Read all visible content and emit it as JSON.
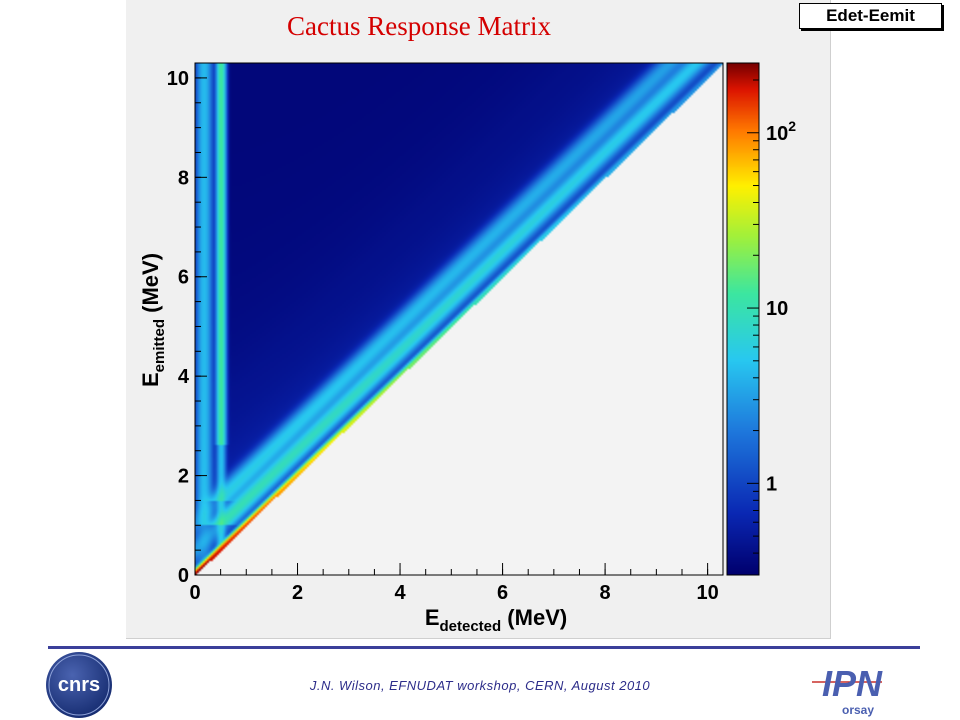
{
  "chart_data": {
    "type": "heatmap",
    "title": "Cactus Response Matrix",
    "histogram_name": "Edet-Eemit",
    "xlabel": {
      "main": "E",
      "sub": "detected",
      "unit": " (MeV)"
    },
    "ylabel": {
      "main": "E",
      "sub": "emitted",
      "unit": " (MeV)"
    },
    "xlim": [
      0,
      10.3
    ],
    "ylim": [
      0,
      10.3
    ],
    "x_ticks": [
      "0",
      "2",
      "4",
      "6",
      "8",
      "10"
    ],
    "y_ticks": [
      "0",
      "2",
      "4",
      "6",
      "8",
      "10"
    ],
    "x_tick_values": [
      0,
      2,
      4,
      6,
      8,
      10
    ],
    "y_tick_values": [
      0,
      2,
      4,
      6,
      8,
      10
    ],
    "colorbar": {
      "scale": "log",
      "range": [
        0.3,
        250
      ],
      "tick_values": [
        1,
        10,
        100
      ],
      "tick_labels": [
        {
          "base": "1",
          "exp": ""
        },
        {
          "base": "10",
          "exp": ""
        },
        {
          "base": "10",
          "exp": "2"
        }
      ]
    },
    "features": [
      {
        "name": "background-continuum",
        "region": "x < y",
        "typical_counts": 0.4
      },
      {
        "name": "full-energy-peak",
        "region": "x = y",
        "peak_counts": 250
      },
      {
        "name": "single-escape",
        "region": "x = y - 0.511",
        "peak_counts": 10
      },
      {
        "name": "double-escape",
        "region": "x = y - 1.022",
        "peak_counts": 6
      },
      {
        "name": "annihilation-511keV",
        "region": "x = 0.511, y > 1.022",
        "peak_counts": 12
      },
      {
        "name": "backscatter",
        "region": "x ≈ 0.2",
        "peak_counts": 4
      }
    ],
    "grid": false
  },
  "footer": {
    "text": "J.N. Wilson,  EFNUDAT workshop, CERN, August 2010"
  },
  "logos": {
    "left": "CNRS",
    "right": "IPN",
    "right_sub": "orsay"
  },
  "colors": {
    "title": "#d40000",
    "footer": "#2d2d8a",
    "rule": "#3b3f9a"
  }
}
